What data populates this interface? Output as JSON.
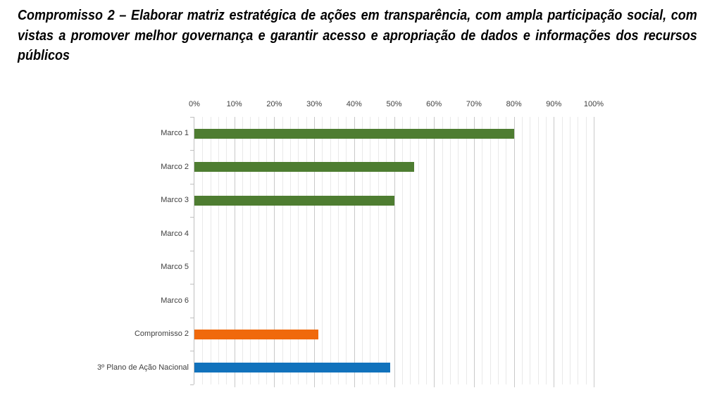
{
  "title": "Compromisso 2 – Elaborar matriz estratégica de ações em transparência, com ampla participação social, com vistas a promover melhor governança e garantir acesso e apropriação de dados e informações dos recursos públicos",
  "chart_data": {
    "type": "bar",
    "orientation": "horizontal",
    "title": "",
    "categories": [
      "Marco 1",
      "Marco 2",
      "Marco 3",
      "Marco 4",
      "Marco 5",
      "Marco 6",
      "Compromisso 2",
      "3º Plano de Ação Nacional"
    ],
    "values": [
      80,
      55,
      50,
      0,
      0,
      0,
      31,
      49
    ],
    "value_unit": "%",
    "bar_colors": [
      "#4E7D31",
      "#4E7D31",
      "#4E7D31",
      "#4E7D31",
      "#4E7D31",
      "#4E7D31",
      "#F0690C",
      "#1172BC"
    ],
    "xlim": [
      0,
      100
    ],
    "x_tick_values": [
      0,
      10,
      20,
      30,
      40,
      50,
      60,
      70,
      80,
      90,
      100
    ],
    "x_tick_labels": [
      "0%",
      "10%",
      "20%",
      "30%",
      "40%",
      "50%",
      "60%",
      "70%",
      "80%",
      "90%",
      "100%"
    ],
    "minor_grid_step": 2,
    "grid": "on",
    "legend": "none",
    "x_axis_position": "top"
  },
  "style_colors": {
    "title_text": "#000000",
    "axis_text": "#3F3F3F",
    "axis_line": "#BFBFBF",
    "major_gridline": "#C9C9C9",
    "minor_gridline": "#E9E9E9",
    "background": "#FFFFFF"
  }
}
